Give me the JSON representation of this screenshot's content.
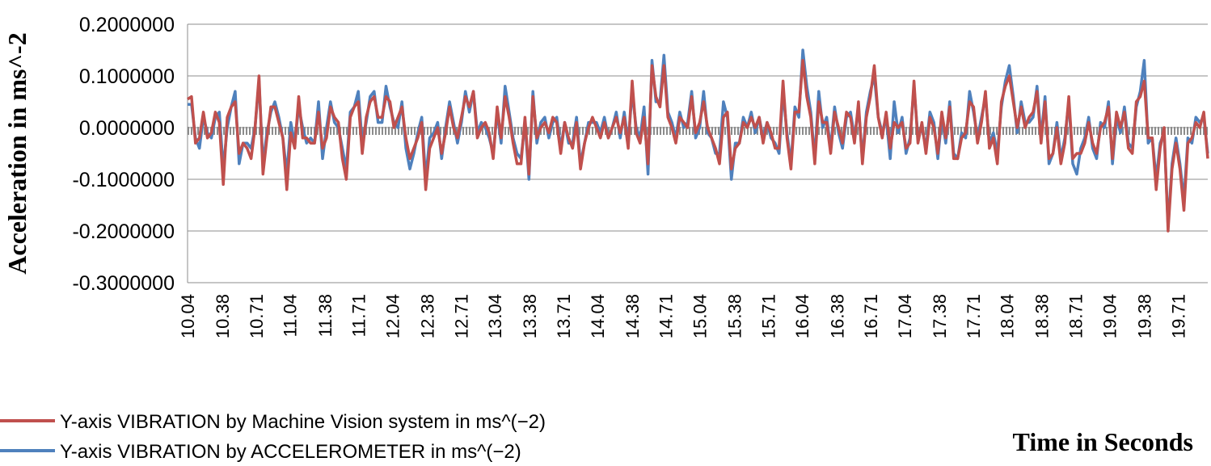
{
  "chart_data": {
    "type": "line",
    "xlabel": "Time in Seconds",
    "ylabel": "Acceleration in ms^-2",
    "ylim": [
      -0.3,
      0.2
    ],
    "yticks": [
      "0.2000000",
      "0.1000000",
      "0.0000000",
      "-0.1000000",
      "-0.2000000",
      "-0.3000000"
    ],
    "ytick_values": [
      0.2,
      0.1,
      0.0,
      -0.1,
      -0.2,
      -0.3
    ],
    "xlim": [
      10.04,
      20.0
    ],
    "xticks": [
      "10.04",
      "10.38",
      "10.71",
      "11.04",
      "11.38",
      "11.71",
      "12.04",
      "12.38",
      "12.71",
      "13.04",
      "13.38",
      "13.71",
      "14.04",
      "14.38",
      "14.71",
      "15.04",
      "15.38",
      "15.71",
      "16.04",
      "16.38",
      "16.71",
      "17.04",
      "17.38",
      "17.71",
      "18.04",
      "18.38",
      "18.71",
      "19.04",
      "19.38",
      "19.71"
    ],
    "grid": "horizontal",
    "legend_position": "bottom-left",
    "series": [
      {
        "name": "Y-axis VIBRATION by Machine Vision system in  ms^(−2)",
        "color": "#c0504d",
        "values": [
          0.055,
          0.06,
          -0.03,
          -0.02,
          0.03,
          -0.02,
          -0.01,
          0.03,
          0.01,
          -0.11,
          0.02,
          0.04,
          0.05,
          -0.05,
          -0.03,
          -0.04,
          -0.06,
          0.0,
          0.1,
          -0.09,
          -0.02,
          0.04,
          0.04,
          0.01,
          -0.02,
          -0.12,
          -0.01,
          -0.04,
          0.06,
          -0.02,
          -0.02,
          -0.03,
          -0.03,
          0.03,
          -0.04,
          -0.02,
          0.04,
          0.02,
          0.01,
          -0.06,
          -0.1,
          0.02,
          0.04,
          0.05,
          -0.05,
          0.02,
          0.05,
          0.06,
          0.02,
          0.02,
          0.06,
          0.05,
          0.0,
          0.02,
          0.04,
          -0.02,
          -0.06,
          -0.04,
          -0.02,
          0.01,
          -0.12,
          -0.04,
          -0.02,
          0.0,
          -0.05,
          -0.01,
          0.04,
          0.0,
          -0.02,
          0.02,
          0.06,
          0.04,
          0.07,
          -0.02,
          0.0,
          0.01,
          -0.01,
          -0.06,
          0.04,
          -0.02,
          0.06,
          0.02,
          -0.03,
          -0.07,
          -0.07,
          0.02,
          -0.09,
          0.06,
          -0.02,
          0.0,
          0.01,
          -0.01,
          0.02,
          0.01,
          -0.05,
          0.01,
          -0.02,
          -0.04,
          0.01,
          -0.08,
          -0.03,
          0.0,
          0.02,
          0.0,
          -0.02,
          0.01,
          -0.02,
          0.0,
          0.02,
          -0.01,
          0.02,
          -0.04,
          0.09,
          -0.01,
          -0.03,
          0.02,
          -0.07,
          0.12,
          0.06,
          0.04,
          0.12,
          0.02,
          0.0,
          -0.03,
          0.02,
          0.01,
          0.0,
          0.06,
          -0.01,
          0.01,
          0.05,
          0.0,
          -0.02,
          -0.04,
          -0.07,
          0.02,
          0.03,
          -0.08,
          -0.04,
          -0.03,
          0.01,
          0.0,
          0.02,
          0.0,
          0.02,
          -0.03,
          0.01,
          -0.01,
          -0.04,
          -0.04,
          0.09,
          -0.02,
          -0.08,
          0.03,
          0.03,
          0.13,
          0.06,
          0.02,
          -0.07,
          0.05,
          0.01,
          0.01,
          -0.05,
          0.03,
          0.0,
          -0.03,
          0.03,
          0.02,
          -0.03,
          0.05,
          -0.07,
          0.02,
          0.06,
          0.12,
          0.02,
          -0.02,
          0.03,
          -0.04,
          0.01,
          0.0,
          0.01,
          -0.04,
          -0.03,
          0.09,
          -0.03,
          0.01,
          -0.05,
          0.02,
          0.0,
          -0.05,
          0.03,
          -0.02,
          0.04,
          -0.06,
          -0.06,
          -0.02,
          -0.01,
          0.05,
          0.04,
          -0.03,
          0.01,
          0.07,
          -0.04,
          -0.02,
          -0.07,
          0.05,
          0.08,
          0.1,
          0.05,
          0.0,
          0.04,
          0.0,
          0.02,
          0.03,
          0.07,
          -0.03,
          0.05,
          -0.06,
          -0.05,
          0.0,
          -0.07,
          -0.03,
          0.06,
          -0.06,
          -0.05,
          -0.05,
          -0.03,
          0.01,
          -0.03,
          -0.05,
          0.0,
          0.01,
          0.04,
          -0.06,
          0.03,
          0.0,
          0.03,
          -0.04,
          -0.05,
          0.05,
          0.06,
          0.09,
          -0.02,
          -0.02,
          -0.12,
          -0.04,
          0.0,
          -0.2,
          -0.08,
          -0.03,
          -0.08,
          -0.16,
          -0.03,
          -0.02,
          0.01,
          0.0,
          0.03,
          -0.06
        ]
      },
      {
        "name": "Y-axis VIBRATION by ACCELEROMETER in ms^(−2)",
        "color": "#4f81bd",
        "values": [
          0.045,
          0.045,
          -0.02,
          -0.04,
          0.02,
          -0.01,
          -0.02,
          0.02,
          0.03,
          -0.08,
          0.0,
          0.04,
          0.07,
          -0.07,
          -0.03,
          -0.03,
          -0.04,
          0.0,
          0.09,
          -0.07,
          -0.01,
          0.03,
          0.05,
          0.02,
          -0.02,
          -0.09,
          0.01,
          -0.03,
          0.04,
          0.0,
          -0.03,
          -0.02,
          -0.03,
          0.05,
          -0.06,
          0.0,
          0.05,
          0.01,
          0.0,
          -0.04,
          -0.08,
          0.03,
          0.04,
          0.07,
          -0.03,
          0.01,
          0.06,
          0.07,
          0.01,
          0.01,
          0.08,
          0.04,
          0.01,
          0.0,
          0.05,
          -0.04,
          -0.08,
          -0.05,
          -0.01,
          0.02,
          -0.1,
          -0.02,
          -0.01,
          0.01,
          -0.06,
          0.0,
          0.05,
          0.01,
          -0.03,
          0.01,
          0.07,
          0.03,
          0.07,
          -0.01,
          0.01,
          0.0,
          -0.02,
          -0.05,
          0.03,
          -0.03,
          0.08,
          0.03,
          -0.02,
          -0.05,
          -0.06,
          0.01,
          -0.1,
          0.07,
          -0.03,
          0.01,
          0.02,
          -0.02,
          0.01,
          0.02,
          -0.04,
          0.01,
          -0.03,
          -0.03,
          0.02,
          -0.07,
          -0.03,
          0.01,
          0.01,
          0.01,
          -0.01,
          0.02,
          -0.02,
          0.0,
          0.03,
          -0.02,
          0.03,
          -0.03,
          0.07,
          0.0,
          -0.02,
          0.04,
          -0.09,
          0.13,
          0.05,
          0.05,
          0.14,
          0.03,
          0.01,
          -0.02,
          0.03,
          0.0,
          0.01,
          0.07,
          -0.02,
          0.0,
          0.07,
          -0.01,
          -0.02,
          -0.05,
          -0.05,
          0.05,
          0.02,
          -0.1,
          -0.03,
          -0.03,
          0.02,
          0.0,
          0.03,
          -0.01,
          0.02,
          -0.02,
          0.01,
          -0.02,
          -0.03,
          -0.05,
          0.07,
          -0.01,
          -0.07,
          0.04,
          0.02,
          0.15,
          0.08,
          0.03,
          -0.06,
          0.07,
          0.0,
          0.02,
          -0.04,
          0.04,
          -0.01,
          -0.04,
          0.02,
          0.03,
          -0.02,
          0.04,
          -0.06,
          0.03,
          0.07,
          0.1,
          0.02,
          -0.01,
          0.02,
          -0.06,
          0.05,
          -0.01,
          0.02,
          -0.05,
          -0.02,
          0.08,
          -0.02,
          0.0,
          -0.04,
          0.03,
          0.01,
          -0.06,
          0.02,
          -0.03,
          0.05,
          -0.05,
          -0.06,
          -0.01,
          -0.02,
          0.07,
          0.03,
          -0.02,
          0.02,
          0.06,
          -0.03,
          -0.01,
          -0.05,
          0.04,
          0.09,
          0.12,
          0.06,
          -0.01,
          0.05,
          0.01,
          0.01,
          0.02,
          0.08,
          -0.02,
          0.06,
          -0.07,
          -0.05,
          0.01,
          -0.06,
          -0.02,
          0.05,
          -0.07,
          -0.09,
          -0.04,
          -0.02,
          0.02,
          -0.04,
          -0.06,
          0.01,
          0.0,
          0.05,
          -0.07,
          0.02,
          -0.01,
          0.04,
          -0.03,
          -0.04,
          0.04,
          0.07,
          0.13,
          -0.03,
          -0.02,
          -0.1,
          -0.03,
          -0.01,
          -0.19,
          -0.07,
          -0.02,
          -0.07,
          -0.14,
          -0.02,
          -0.03,
          0.02,
          0.01,
          0.02,
          -0.05
        ]
      }
    ]
  }
}
